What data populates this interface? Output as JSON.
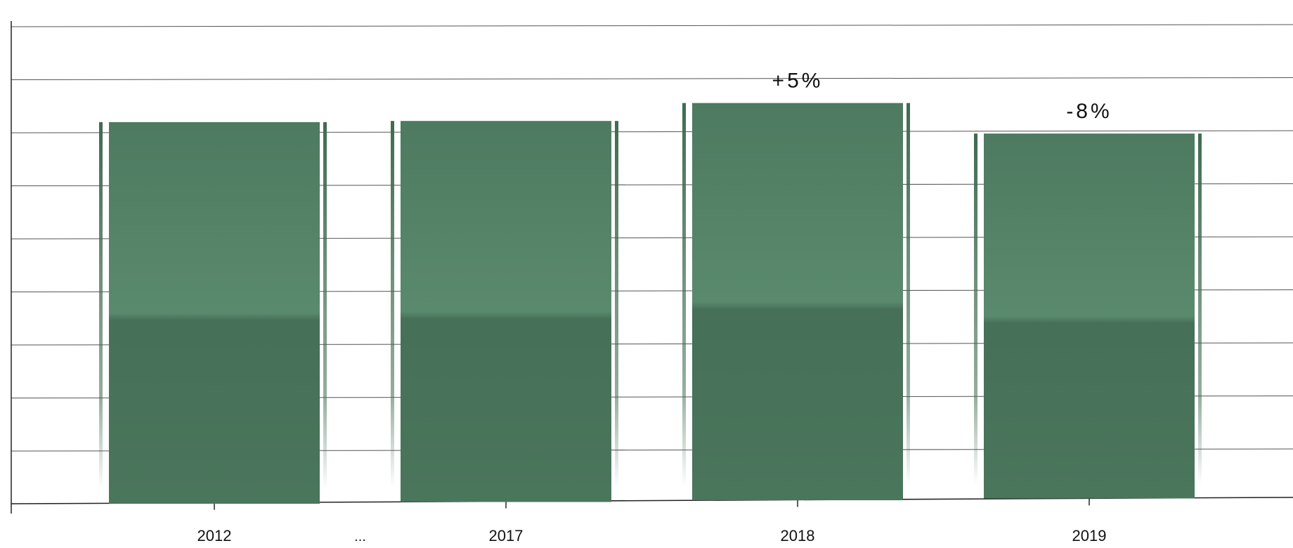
{
  "chart_data": {
    "type": "bar",
    "title": "",
    "xlabel": "",
    "ylabel": "",
    "categories": [
      "2012",
      "2017",
      "2018",
      "2019"
    ],
    "values": [
      100,
      100.3,
      105,
      97
    ],
    "annotations": [
      {
        "category": "2018",
        "text": "+5%"
      },
      {
        "category": "2019",
        "text": "-8%"
      }
    ],
    "break_marker": "...",
    "ylim": [
      0,
      125
    ],
    "grid": true,
    "y_tick_labels_visible": false,
    "legend": "none",
    "bar_color": "#4f7a61"
  }
}
